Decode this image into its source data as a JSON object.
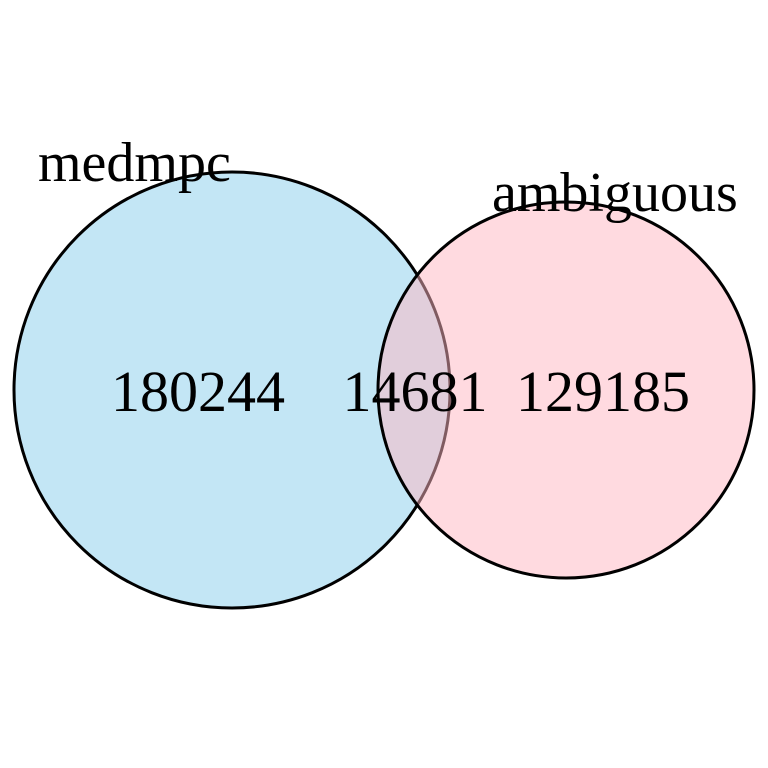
{
  "diagram": {
    "type": "venn",
    "sets": [
      {
        "name": "medmpc",
        "fill_color": "#87CEEB",
        "fill_opacity": 0.5,
        "stroke_color": "#000000"
      },
      {
        "name": "ambiguous",
        "fill_color": "#FFB6C1",
        "fill_opacity": 0.5,
        "stroke_color": "#000000"
      }
    ],
    "counts": {
      "medmpc_only": "180244",
      "intersection": "14681",
      "ambiguous_only": "129185"
    }
  }
}
